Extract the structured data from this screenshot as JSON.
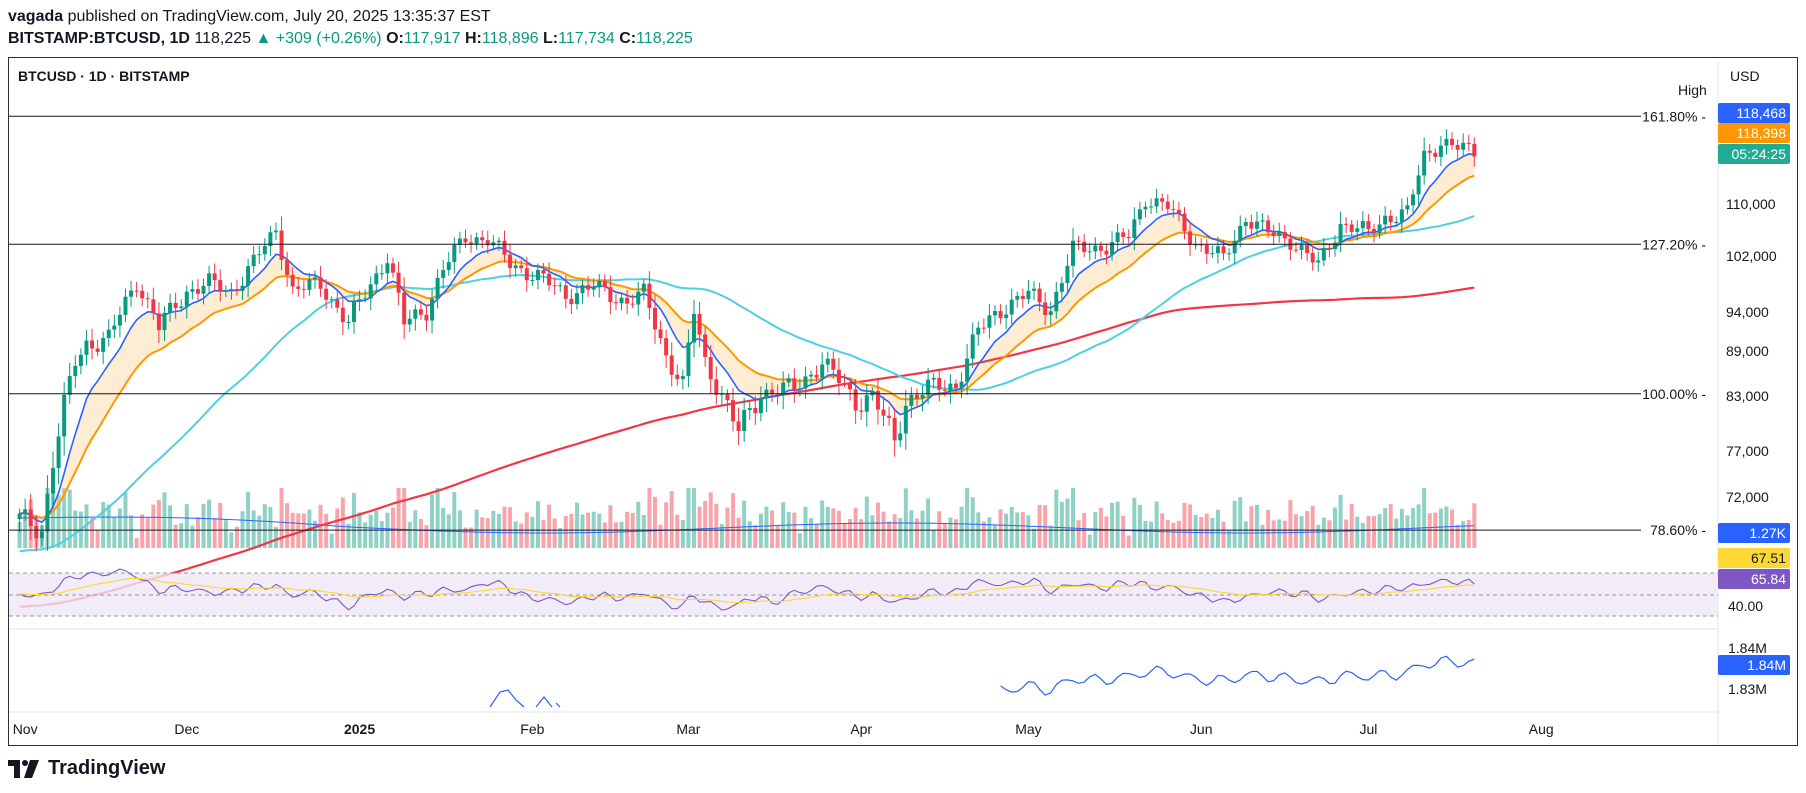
{
  "header": {
    "author": "vagada",
    "published_text": "published on TradingView.com, July 20, 2025 13:35:37 EST",
    "symbol": "BITSTAMP:BTCUSD, 1D",
    "last": "118,225",
    "change": "+309 (+0.26%)",
    "o_label": "O:",
    "o": "117,917",
    "h_label": "H:",
    "h": "118,896",
    "l_label": "L:",
    "l": "117,734",
    "c_label": "C:",
    "c": "118,225"
  },
  "chart_title": "BTCUSD · 1D · BITSTAMP",
  "currency": "USD",
  "high_label": "High",
  "colors": {
    "up": "#089981",
    "down": "#f23645",
    "ma_fast_blue": "#2962ff",
    "ma_orange": "#ff9800",
    "ma_cyan": "#4dd0e1",
    "ma_red": "#f23645",
    "rsi_line": "#7e57c2",
    "rsi_ma": "#fdd835",
    "rsi_band": "#ede7f6",
    "obv_line": "#2962ff",
    "time_badge": "#22ab94"
  },
  "price_badges": {
    "high": "118,468",
    "ma": "118,398",
    "countdown": "05:24:25",
    "volume": "1.27K",
    "rsi_ma": "67.51",
    "rsi": "65.84",
    "obv": "1.84M"
  },
  "footer_brand": "TradingView",
  "chart_data": {
    "type": "candlestick",
    "price_axis": {
      "ticks": [
        "110,000",
        "102,000",
        "94,000",
        "89,000",
        "83,000",
        "77,000",
        "72,000"
      ],
      "tick_values": [
        110000,
        102000,
        94000,
        89000,
        83000,
        77000,
        72000
      ]
    },
    "time_axis": [
      "Nov",
      "Dec",
      "2025",
      "Feb",
      "Mar",
      "Apr",
      "May",
      "Jun",
      "Jul",
      "Aug"
    ],
    "fib_levels": [
      {
        "label": "161.80%",
        "price": 123500
      },
      {
        "label": "127.20%",
        "price": 103800
      },
      {
        "label": "100.00%",
        "price": 83300
      },
      {
        "label": "78.60%",
        "price": 68400
      }
    ],
    "close_series": [
      {
        "date": "2024-11-01",
        "price": 69500
      },
      {
        "date": "2024-11-05",
        "price": 68500
      },
      {
        "date": "2024-11-07",
        "price": 76000
      },
      {
        "date": "2024-11-11",
        "price": 87500
      },
      {
        "date": "2024-11-13",
        "price": 90000
      },
      {
        "date": "2024-11-17",
        "price": 90500
      },
      {
        "date": "2024-11-22",
        "price": 98500
      },
      {
        "date": "2024-11-26",
        "price": 92000
      },
      {
        "date": "2024-12-01",
        "price": 97000
      },
      {
        "date": "2024-12-05",
        "price": 98000
      },
      {
        "date": "2024-12-09",
        "price": 97000
      },
      {
        "date": "2024-12-13",
        "price": 101000
      },
      {
        "date": "2024-12-17",
        "price": 106000
      },
      {
        "date": "2024-12-20",
        "price": 97000
      },
      {
        "date": "2024-12-25",
        "price": 98000
      },
      {
        "date": "2024-12-30",
        "price": 92500
      },
      {
        "date": "2025-01-03",
        "price": 98000
      },
      {
        "date": "2025-01-06",
        "price": 102000
      },
      {
        "date": "2025-01-09",
        "price": 92500
      },
      {
        "date": "2025-01-13",
        "price": 94500
      },
      {
        "date": "2025-01-16",
        "price": 100000
      },
      {
        "date": "2025-01-20",
        "price": 105000
      },
      {
        "date": "2025-01-24",
        "price": 104500
      },
      {
        "date": "2025-01-28",
        "price": 101000
      },
      {
        "date": "2025-02-02",
        "price": 99000
      },
      {
        "date": "2025-02-07",
        "price": 96500
      },
      {
        "date": "2025-02-12",
        "price": 97500
      },
      {
        "date": "2025-02-18",
        "price": 95500
      },
      {
        "date": "2025-02-21",
        "price": 96500
      },
      {
        "date": "2025-02-25",
        "price": 88500
      },
      {
        "date": "2025-02-28",
        "price": 84500
      },
      {
        "date": "2025-03-02",
        "price": 94000
      },
      {
        "date": "2025-03-04",
        "price": 87500
      },
      {
        "date": "2025-03-10",
        "price": 79000
      },
      {
        "date": "2025-03-14",
        "price": 83500
      },
      {
        "date": "2025-03-20",
        "price": 84000
      },
      {
        "date": "2025-03-25",
        "price": 87500
      },
      {
        "date": "2025-03-31",
        "price": 82500
      },
      {
        "date": "2025-04-03",
        "price": 83000
      },
      {
        "date": "2025-04-07",
        "price": 78000
      },
      {
        "date": "2025-04-09",
        "price": 82500
      },
      {
        "date": "2025-04-13",
        "price": 84000
      },
      {
        "date": "2025-04-18",
        "price": 84500
      },
      {
        "date": "2025-04-22",
        "price": 91500
      },
      {
        "date": "2025-04-26",
        "price": 94500
      },
      {
        "date": "2025-05-01",
        "price": 96500
      },
      {
        "date": "2025-05-05",
        "price": 94500
      },
      {
        "date": "2025-05-09",
        "price": 103000
      },
      {
        "date": "2025-05-15",
        "price": 103500
      },
      {
        "date": "2025-05-19",
        "price": 105000
      },
      {
        "date": "2025-05-22",
        "price": 111000
      },
      {
        "date": "2025-05-26",
        "price": 109500
      },
      {
        "date": "2025-05-31",
        "price": 104000
      },
      {
        "date": "2025-06-05",
        "price": 101500
      },
      {
        "date": "2025-06-09",
        "price": 108000
      },
      {
        "date": "2025-06-13",
        "price": 105500
      },
      {
        "date": "2025-06-17",
        "price": 104500
      },
      {
        "date": "2025-06-22",
        "price": 100500
      },
      {
        "date": "2025-06-26",
        "price": 107000
      },
      {
        "date": "2025-07-01",
        "price": 105500
      },
      {
        "date": "2025-07-04",
        "price": 108000
      },
      {
        "date": "2025-07-08",
        "price": 108500
      },
      {
        "date": "2025-07-11",
        "price": 117500
      },
      {
        "date": "2025-07-14",
        "price": 119500
      },
      {
        "date": "2025-07-17",
        "price": 118500
      },
      {
        "date": "2025-07-20",
        "price": 118225
      }
    ]
  }
}
